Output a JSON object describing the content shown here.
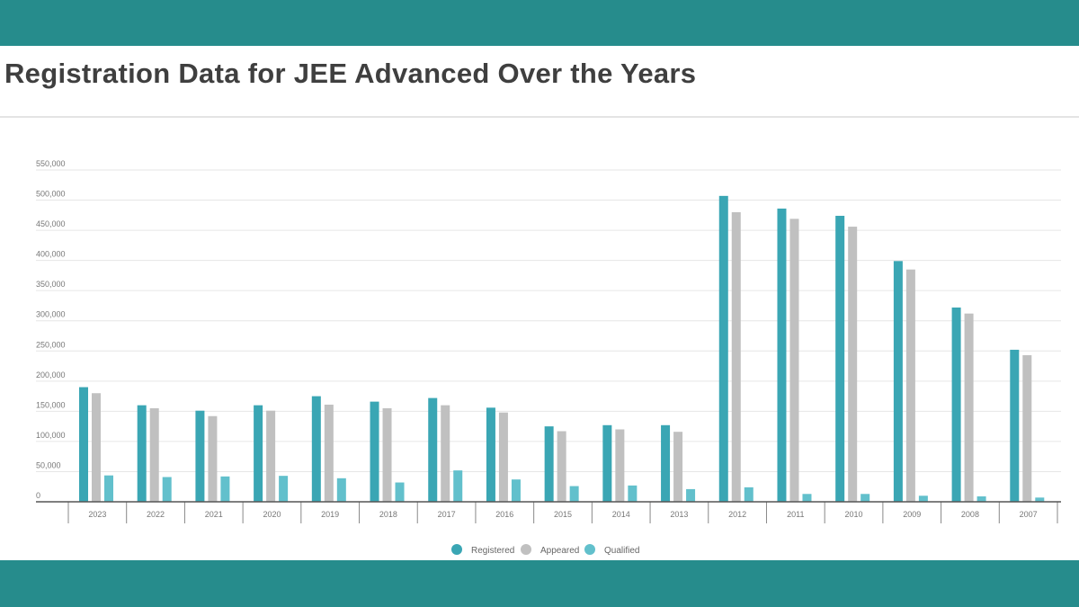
{
  "header": {
    "title": "Registration Data for JEE Advanced Over the Years"
  },
  "colors": {
    "banner": "#268c8c",
    "registered": "#3aa6b4",
    "appeared": "#c0c0c0",
    "qualified": "#62c0cc"
  },
  "chart_data": {
    "type": "bar",
    "title": "Registration Data for JEE Advanced Over the Years",
    "xlabel": "",
    "ylabel": "",
    "ylim": [
      0,
      550000
    ],
    "yticks": [
      0,
      50000,
      100000,
      150000,
      200000,
      250000,
      300000,
      350000,
      400000,
      450000,
      500000,
      550000
    ],
    "ytick_labels": [
      "0",
      "50,000",
      "100,000",
      "150,000",
      "200,000",
      "250,000",
      "300,000",
      "350,000",
      "400,000",
      "450,000",
      "500,000",
      "550,000"
    ],
    "grid": true,
    "legend_position": "bottom",
    "categories": [
      "2023",
      "2022",
      "2021",
      "2020",
      "2019",
      "2018",
      "2017",
      "2016",
      "2015",
      "2014",
      "2013",
      "2012",
      "2011",
      "2010",
      "2009",
      "2008",
      "2007"
    ],
    "series": [
      {
        "name": "Registered",
        "values": [
          190000,
          160000,
          151000,
          160000,
          175000,
          166000,
          172000,
          156000,
          125000,
          127000,
          127000,
          507000,
          486000,
          474000,
          399000,
          322000,
          252000
        ]
      },
      {
        "name": "Appeared",
        "values": [
          180000,
          155000,
          142000,
          151000,
          161000,
          155000,
          160000,
          148000,
          117000,
          120000,
          116000,
          480000,
          469000,
          456000,
          385000,
          312000,
          243000
        ]
      },
      {
        "name": "Qualified",
        "values": [
          43700,
          41000,
          42000,
          43000,
          39000,
          32000,
          52000,
          37000,
          26000,
          27000,
          21000,
          24000,
          13000,
          13000,
          10000,
          9000,
          7000
        ]
      }
    ]
  }
}
